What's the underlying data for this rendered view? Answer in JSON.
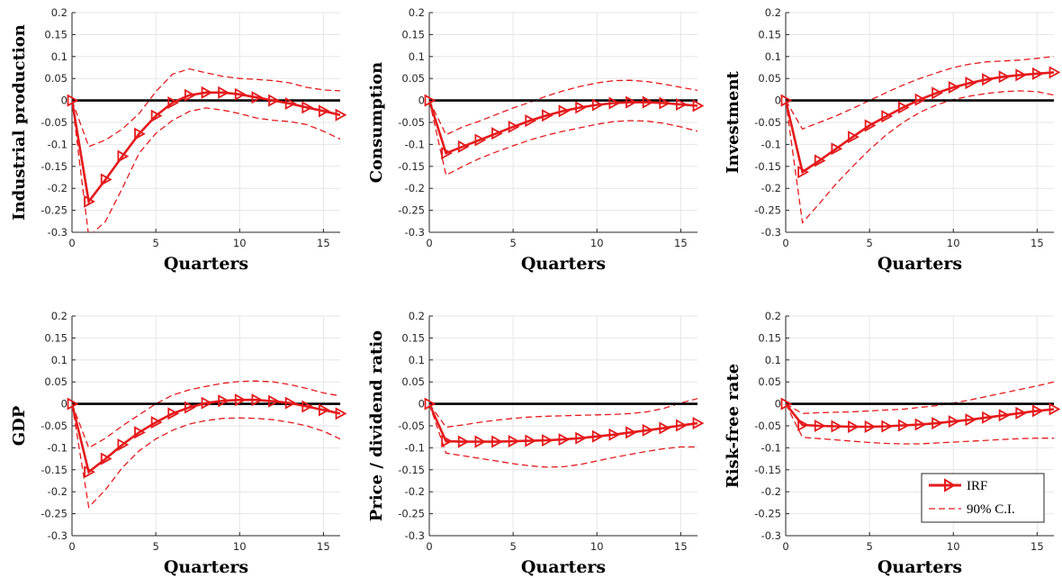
{
  "chart_data": [
    {
      "type": "line",
      "ylabel": "Industrial production",
      "xlabel": "Quarters",
      "xlim": [
        0,
        16
      ],
      "ylim": [
        -0.3,
        0.2
      ],
      "xticks": [
        0,
        5,
        10,
        15
      ],
      "yticks": [
        -0.3,
        -0.25,
        -0.2,
        -0.15,
        -0.1,
        -0.05,
        0,
        0.05,
        0.1,
        0.15,
        0.2
      ],
      "x": [
        0,
        1,
        2,
        3,
        4,
        5,
        6,
        7,
        8,
        9,
        10,
        11,
        12,
        13,
        14,
        15,
        16
      ],
      "series": [
        {
          "name": "IRF",
          "style": "marker",
          "values": [
            0,
            -0.23,
            -0.18,
            -0.127,
            -0.076,
            -0.035,
            -0.005,
            0.012,
            0.018,
            0.018,
            0.014,
            0.007,
            0,
            -0.007,
            -0.016,
            -0.024,
            -0.033
          ]
        },
        {
          "name": "90% C.I.",
          "style": "dashed",
          "values": [
            0,
            -0.105,
            -0.09,
            -0.065,
            -0.03,
            0.02,
            0.06,
            0.072,
            0.063,
            0.055,
            0.05,
            0.048,
            0.045,
            0.04,
            0.03,
            0.024,
            0.022
          ]
        },
        {
          "style": "dashed",
          "values": [
            0,
            -0.31,
            -0.275,
            -0.2,
            -0.12,
            -0.075,
            -0.045,
            -0.025,
            -0.017,
            -0.022,
            -0.03,
            -0.04,
            -0.045,
            -0.048,
            -0.055,
            -0.07,
            -0.088
          ]
        }
      ]
    },
    {
      "type": "line",
      "ylabel": "Consumption",
      "xlabel": "Quarters",
      "xlim": [
        0,
        16
      ],
      "ylim": [
        -0.3,
        0.2
      ],
      "xticks": [
        0,
        5,
        10,
        15
      ],
      "yticks": [
        -0.3,
        -0.25,
        -0.2,
        -0.15,
        -0.1,
        -0.05,
        0,
        0.05,
        0.1,
        0.15,
        0.2
      ],
      "x": [
        0,
        1,
        2,
        3,
        4,
        5,
        6,
        7,
        8,
        9,
        10,
        11,
        12,
        13,
        14,
        15,
        16
      ],
      "series": [
        {
          "name": "IRF",
          "style": "marker",
          "values": [
            0,
            -0.12,
            -0.105,
            -0.09,
            -0.075,
            -0.06,
            -0.046,
            -0.034,
            -0.024,
            -0.016,
            -0.01,
            -0.006,
            -0.004,
            -0.004,
            -0.006,
            -0.009,
            -0.012
          ]
        },
        {
          "name": "90% C.I.",
          "style": "dashed",
          "values": [
            0,
            -0.078,
            -0.06,
            -0.047,
            -0.032,
            -0.017,
            -0.004,
            0.01,
            0.022,
            0.032,
            0.04,
            0.045,
            0.046,
            0.043,
            0.037,
            0.03,
            0.023
          ]
        },
        {
          "style": "dashed",
          "values": [
            0,
            -0.17,
            -0.15,
            -0.132,
            -0.117,
            -0.103,
            -0.09,
            -0.079,
            -0.07,
            -0.062,
            -0.054,
            -0.048,
            -0.046,
            -0.047,
            -0.052,
            -0.06,
            -0.07
          ]
        }
      ]
    },
    {
      "type": "line",
      "ylabel": "Investment",
      "xlabel": "Quarters",
      "xlim": [
        0,
        16
      ],
      "ylim": [
        -0.3,
        0.2
      ],
      "xticks": [
        0,
        5,
        10,
        15
      ],
      "yticks": [
        -0.3,
        -0.25,
        -0.2,
        -0.15,
        -0.1,
        -0.05,
        0,
        0.05,
        0.1,
        0.15,
        0.2
      ],
      "x": [
        0,
        1,
        2,
        3,
        4,
        5,
        6,
        7,
        8,
        9,
        10,
        11,
        12,
        13,
        14,
        15,
        16
      ],
      "series": [
        {
          "name": "IRF",
          "style": "marker",
          "values": [
            0,
            -0.163,
            -0.137,
            -0.11,
            -0.083,
            -0.057,
            -0.036,
            -0.016,
            0.002,
            0.017,
            0.03,
            0.04,
            0.048,
            0.054,
            0.058,
            0.061,
            0.064
          ]
        },
        {
          "name": "90% C.I.",
          "style": "dashed",
          "values": [
            0,
            -0.065,
            -0.05,
            -0.035,
            -0.018,
            0,
            0.018,
            0.035,
            0.05,
            0.063,
            0.075,
            0.083,
            0.088,
            0.09,
            0.092,
            0.096,
            0.1
          ]
        },
        {
          "style": "dashed",
          "values": [
            0,
            -0.278,
            -0.235,
            -0.19,
            -0.15,
            -0.112,
            -0.078,
            -0.05,
            -0.027,
            -0.01,
            0.002,
            0.01,
            0.016,
            0.02,
            0.022,
            0.02,
            0.012
          ]
        }
      ]
    },
    {
      "type": "line",
      "ylabel": "GDP",
      "xlabel": "Quarters",
      "xlim": [
        0,
        16
      ],
      "ylim": [
        -0.3,
        0.2
      ],
      "xticks": [
        0,
        5,
        10,
        15
      ],
      "yticks": [
        -0.3,
        -0.25,
        -0.2,
        -0.15,
        -0.1,
        -0.05,
        0,
        0.05,
        0.1,
        0.15,
        0.2
      ],
      "x": [
        0,
        1,
        2,
        3,
        4,
        5,
        6,
        7,
        8,
        9,
        10,
        11,
        12,
        13,
        14,
        15,
        16
      ],
      "series": [
        {
          "name": "IRF",
          "style": "marker",
          "values": [
            0,
            -0.155,
            -0.125,
            -0.093,
            -0.065,
            -0.042,
            -0.022,
            -0.008,
            0.002,
            0.007,
            0.009,
            0.009,
            0.006,
            0.002,
            -0.006,
            -0.014,
            -0.022
          ]
        },
        {
          "name": "90% C.I.",
          "style": "dashed",
          "values": [
            0,
            -0.1,
            -0.078,
            -0.05,
            -0.025,
            0,
            0.02,
            0.032,
            0.04,
            0.047,
            0.051,
            0.052,
            0.05,
            0.044,
            0.035,
            0.025,
            0.018
          ]
        },
        {
          "style": "dashed",
          "values": [
            0,
            -0.235,
            -0.195,
            -0.145,
            -0.107,
            -0.08,
            -0.06,
            -0.046,
            -0.038,
            -0.033,
            -0.032,
            -0.033,
            -0.036,
            -0.042,
            -0.05,
            -0.062,
            -0.08
          ]
        }
      ]
    },
    {
      "type": "line",
      "ylabel": "Price / dividend ratio",
      "xlabel": "Quarters",
      "xlim": [
        0,
        16
      ],
      "ylim": [
        -0.3,
        0.2
      ],
      "xticks": [
        0,
        5,
        10,
        15
      ],
      "yticks": [
        -0.3,
        -0.25,
        -0.2,
        -0.15,
        -0.1,
        -0.05,
        0,
        0.05,
        0.1,
        0.15,
        0.2
      ],
      "x": [
        0,
        1,
        2,
        3,
        4,
        5,
        6,
        7,
        8,
        9,
        10,
        11,
        12,
        13,
        14,
        15,
        16
      ],
      "series": [
        {
          "name": "IRF",
          "style": "marker",
          "values": [
            0,
            -0.085,
            -0.086,
            -0.086,
            -0.086,
            -0.085,
            -0.084,
            -0.083,
            -0.081,
            -0.078,
            -0.074,
            -0.07,
            -0.065,
            -0.06,
            -0.055,
            -0.049,
            -0.044
          ]
        },
        {
          "name": "90% C.I.",
          "style": "dashed",
          "values": [
            0,
            -0.053,
            -0.048,
            -0.042,
            -0.037,
            -0.033,
            -0.03,
            -0.028,
            -0.027,
            -0.026,
            -0.025,
            -0.024,
            -0.022,
            -0.018,
            -0.01,
            0.002,
            0.012
          ]
        },
        {
          "style": "dashed",
          "values": [
            0,
            -0.112,
            -0.118,
            -0.124,
            -0.13,
            -0.136,
            -0.141,
            -0.144,
            -0.143,
            -0.138,
            -0.13,
            -0.122,
            -0.115,
            -0.108,
            -0.102,
            -0.098,
            -0.098
          ]
        }
      ]
    },
    {
      "type": "line",
      "ylabel": "Risk-free rate",
      "xlabel": "Quarters",
      "xlim": [
        0,
        16
      ],
      "ylim": [
        -0.3,
        0.2
      ],
      "xticks": [
        0,
        5,
        10,
        15
      ],
      "yticks": [
        -0.3,
        -0.25,
        -0.2,
        -0.15,
        -0.1,
        -0.05,
        0,
        0.05,
        0.1,
        0.15,
        0.2
      ],
      "legend": "bottom-right",
      "x": [
        0,
        1,
        2,
        3,
        4,
        5,
        6,
        7,
        8,
        9,
        10,
        11,
        12,
        13,
        14,
        15,
        16
      ],
      "series": [
        {
          "name": "IRF",
          "style": "marker",
          "values": [
            0,
            -0.048,
            -0.05,
            -0.051,
            -0.052,
            -0.052,
            -0.051,
            -0.049,
            -0.047,
            -0.044,
            -0.04,
            -0.036,
            -0.031,
            -0.026,
            -0.021,
            -0.016,
            -0.012
          ]
        },
        {
          "name": "90% C.I.",
          "style": "dashed",
          "values": [
            0,
            -0.022,
            -0.02,
            -0.019,
            -0.018,
            -0.016,
            -0.014,
            -0.012,
            -0.008,
            -0.004,
            0.002,
            0.009,
            0.017,
            0.025,
            0.033,
            0.041,
            0.05
          ]
        },
        {
          "style": "dashed",
          "values": [
            0,
            -0.076,
            -0.079,
            -0.082,
            -0.085,
            -0.088,
            -0.09,
            -0.091,
            -0.091,
            -0.089,
            -0.087,
            -0.085,
            -0.083,
            -0.081,
            -0.079,
            -0.078,
            -0.078
          ]
        }
      ]
    }
  ],
  "legend": {
    "irf_label": "IRF",
    "ci_label": "90% C.I."
  },
  "colors": {
    "irf": "#e41a1c",
    "ci": "#e41a1c",
    "zero_line": "#000000",
    "grid": "#e6e6e6",
    "axis": "#262626"
  }
}
